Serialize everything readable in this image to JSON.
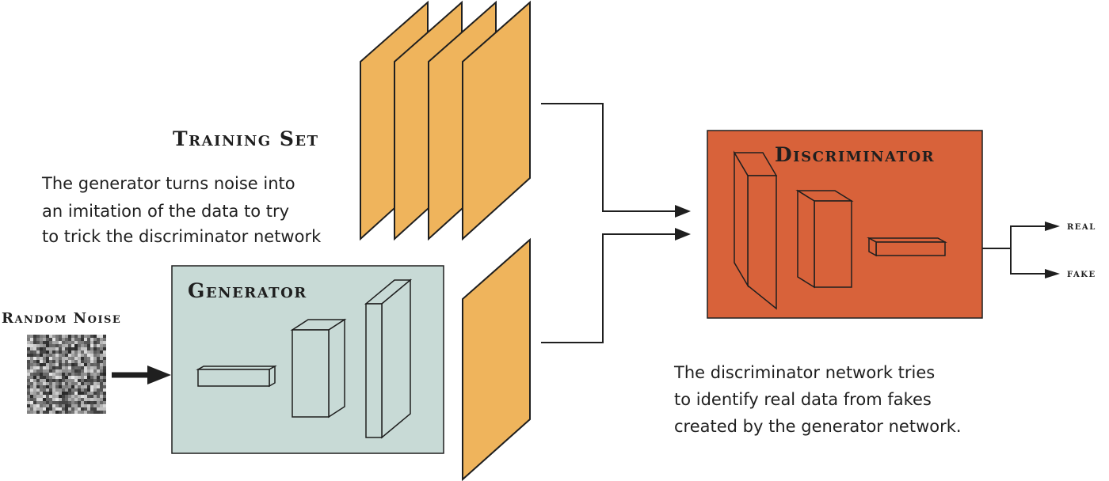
{
  "training_set": {
    "title": "Training Set"
  },
  "generator_caption": {
    "lines": [
      "The generator turns noise into",
      "an imitation of  the data to try",
      "to trick the discriminator network"
    ]
  },
  "random_noise": {
    "label": "Random Noise"
  },
  "generator": {
    "title": "Generator"
  },
  "discriminator": {
    "title": "Discriminator"
  },
  "outputs": {
    "real": "real",
    "fake": "fake"
  },
  "discriminator_caption": {
    "lines": [
      "The discriminator network tries",
      "to identify real data from fakes",
      "created by the generator network."
    ]
  },
  "colors": {
    "training_panel": "#efb45c",
    "generator_box": "#c8dad6",
    "discriminator_box": "#d8623a",
    "stroke": "#1f1f1f"
  }
}
